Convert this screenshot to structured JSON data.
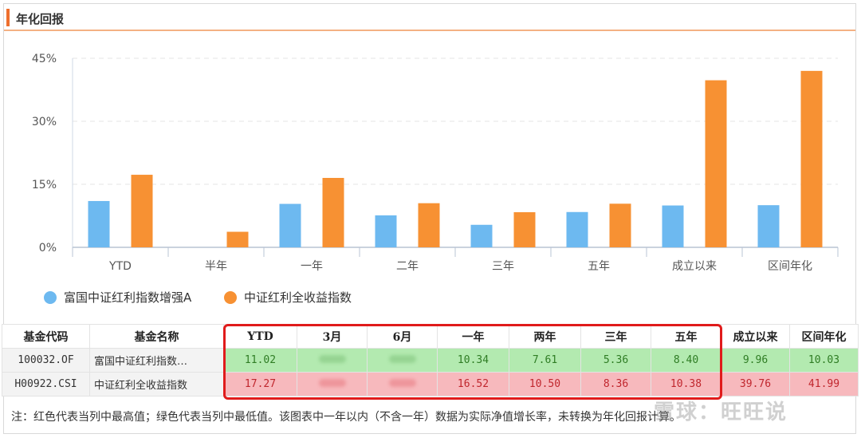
{
  "panel": {
    "title": "年化回报"
  },
  "colors": {
    "series_fund": "#6db9f0",
    "series_index": "#f79133",
    "accent": "#ee6f2d",
    "highlight": "#e01b1b"
  },
  "chart_data": {
    "type": "bar",
    "categories": [
      "YTD",
      "半年",
      "一年",
      "二年",
      "三年",
      "五年",
      "成立以来",
      "区间年化"
    ],
    "series": [
      {
        "name": "富国中证红利指数增强A",
        "values": [
          11.02,
          null,
          10.34,
          7.61,
          5.36,
          8.4,
          9.96,
          10.03
        ]
      },
      {
        "name": "中证红利全收益指数",
        "values": [
          17.27,
          3.7,
          16.52,
          10.5,
          8.36,
          10.38,
          39.76,
          41.99
        ]
      }
    ],
    "yticks": [
      "45%",
      "30%",
      "15%",
      "0%"
    ],
    "ylim": [
      0,
      45
    ],
    "grid": true,
    "legend": "bottom-left"
  },
  "table": {
    "headers": [
      "基金代码",
      "基金名称",
      "YTD",
      "3月",
      "6月",
      "一年",
      "两年",
      "三年",
      "五年",
      "成立以来",
      "区间年化"
    ],
    "rows": [
      {
        "code": "100032.OF",
        "name": "富国中证红利指数…",
        "ytd": "11.02",
        "m3": "",
        "m6": "",
        "y1": "10.34",
        "y2": "7.61",
        "y3": "5.36",
        "y5": "8.40",
        "since": "9.96",
        "ann": "10.03"
      },
      {
        "code": "H00922.CSI",
        "name": "中证红利全收益指数",
        "ytd": "17.27",
        "m3": "",
        "m6": "",
        "y1": "16.52",
        "y2": "10.50",
        "y3": "8.36",
        "y5": "10.38",
        "since": "39.76",
        "ann": "41.99"
      }
    ]
  },
  "footnote": "注：红色代表当列中最高值；绿色代表当列中最低值。该图表中一年以内（不含一年）数据为实际净值增长率，未转换为年化回报计算。",
  "watermark": "雪球：旺旺说"
}
